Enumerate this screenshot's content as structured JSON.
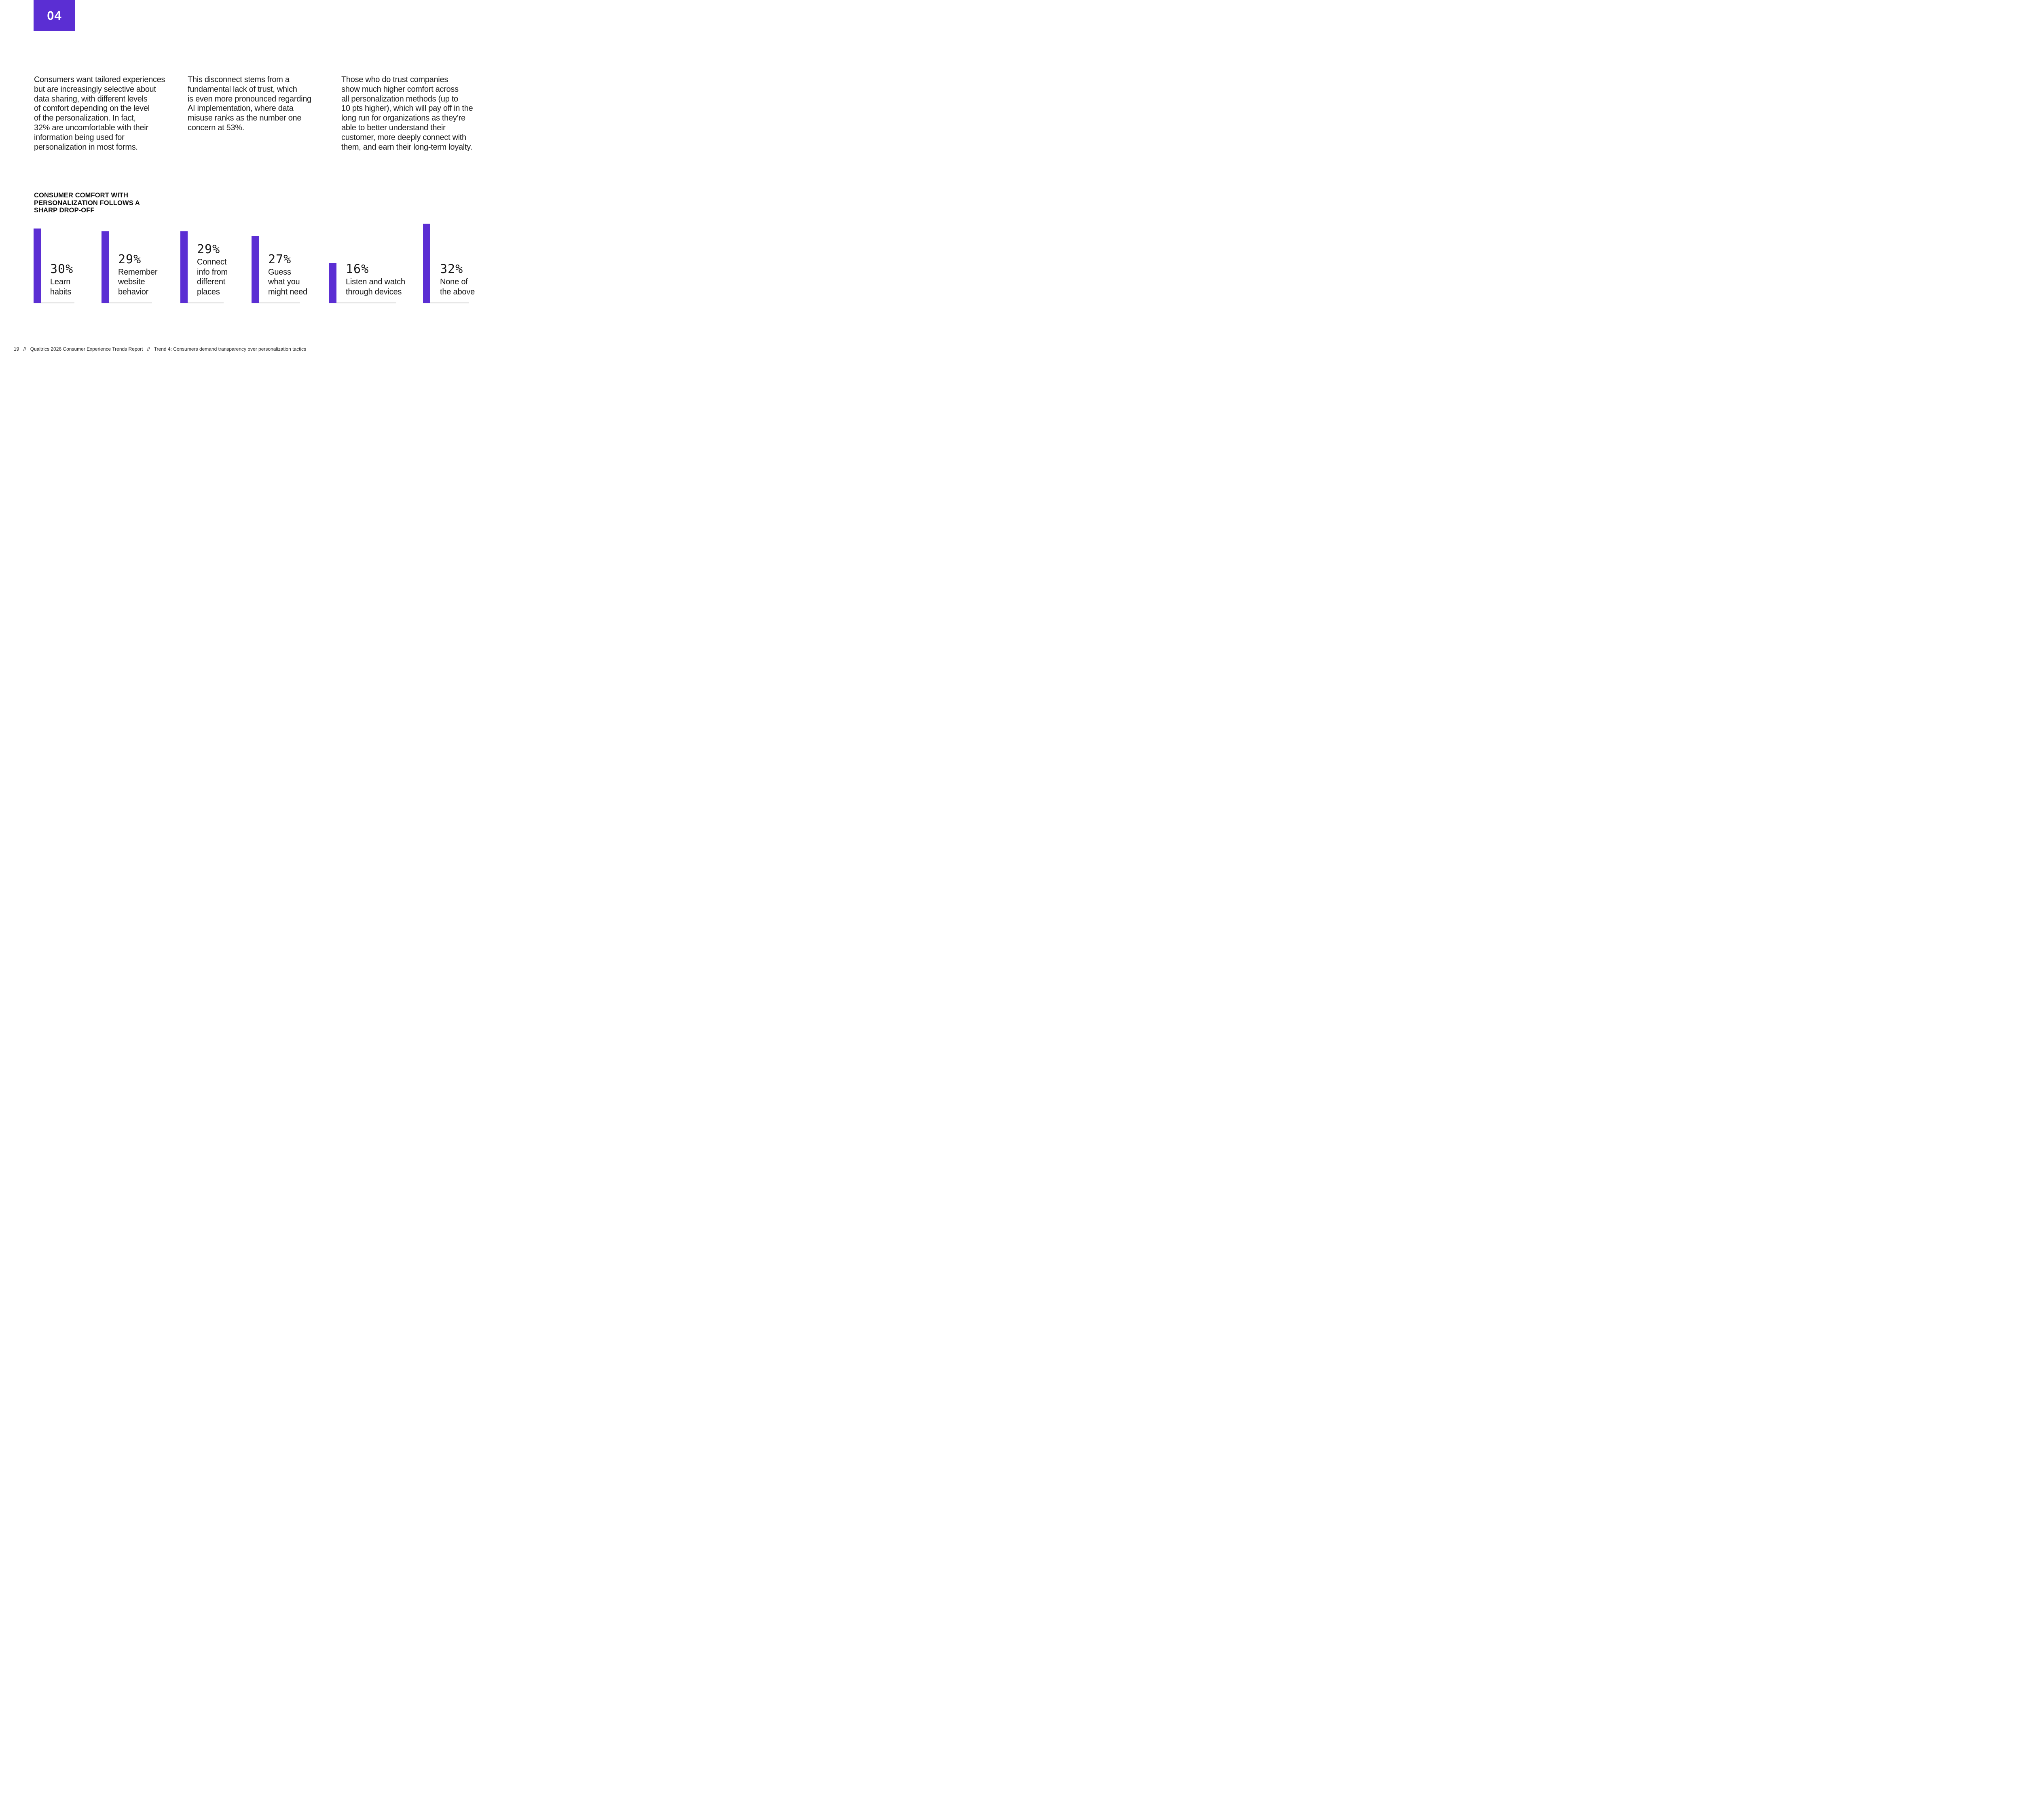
{
  "colors": {
    "accent_purple": "#5b2ed3",
    "axis_gray": "#c9c9c9",
    "text_dark": "#1a1a1a"
  },
  "badge": {
    "number": "04"
  },
  "paragraphs": [
    {
      "lines": [
        "Consumers want tailored experiences",
        "but are increasingly selective about",
        "data sharing, with different levels",
        "of comfort depending on the level",
        "of the personalization. In fact,",
        "32% are uncomfortable with their",
        "information being used for",
        "personalization in most forms."
      ]
    },
    {
      "lines": [
        "This disconnect stems from a",
        "fundamental lack of trust, which",
        "is even more pronounced regarding",
        "AI implementation, where data",
        "misuse ranks as the number one",
        "concern at 53%."
      ]
    },
    {
      "lines": [
        "Those who do trust companies",
        "show much higher comfort across",
        "all personalization methods (up to",
        "10 pts higher), which will pay off in the",
        "long run for organizations as they’re",
        "able to better understand their",
        "customer, more deeply connect with",
        "them, and earn their long-term loyalty."
      ]
    }
  ],
  "chart": {
    "title_lines": [
      "CONSUMER COMFORT WITH",
      "PERSONALIZATION FOLLOWS A",
      "SHARP DROP-OFF"
    ],
    "groups": [
      {
        "value": "30%",
        "label_lines": [
          "Learn",
          "habits"
        ]
      },
      {
        "value": "29%",
        "label_lines": [
          "Remember",
          "website",
          "behavior"
        ]
      },
      {
        "value": "29%",
        "label_lines": [
          "Connect",
          "info from",
          "different",
          "places"
        ]
      },
      {
        "value": "27%",
        "label_lines": [
          "Guess",
          "what you",
          "might need"
        ]
      },
      {
        "value": "16%",
        "label_lines": [
          "Listen and watch",
          "through devices"
        ]
      },
      {
        "value": "32%",
        "label_lines": [
          "None of",
          "the above"
        ]
      }
    ]
  },
  "chart_data": {
    "type": "bar",
    "title": "CONSUMER COMFORT WITH PERSONALIZATION FOLLOWS A SHARP DROP-OFF",
    "categories": [
      "Learn habits",
      "Remember website behavior",
      "Connect info from different places",
      "Guess what you might need",
      "Listen and watch through devices",
      "None of the above"
    ],
    "values": [
      30,
      29,
      29,
      27,
      16,
      32
    ],
    "value_labels": [
      "30%",
      "29%",
      "29%",
      "27%",
      "16%",
      "32%"
    ],
    "unit": "percent",
    "orientation": "vertical",
    "bar_color": "#5b2ed3",
    "legend": "none",
    "grid": "off",
    "axis_style": "baseline segments only, no y-axis, no tick labels",
    "ylim": [
      0,
      32
    ]
  },
  "footer": {
    "page_number": "19",
    "separator": "//",
    "report_title": "Qualtrics 2026 Consumer Experience Trends Report",
    "trend_title": "Trend 4: Consumers demand transparency over personalization tactics"
  }
}
